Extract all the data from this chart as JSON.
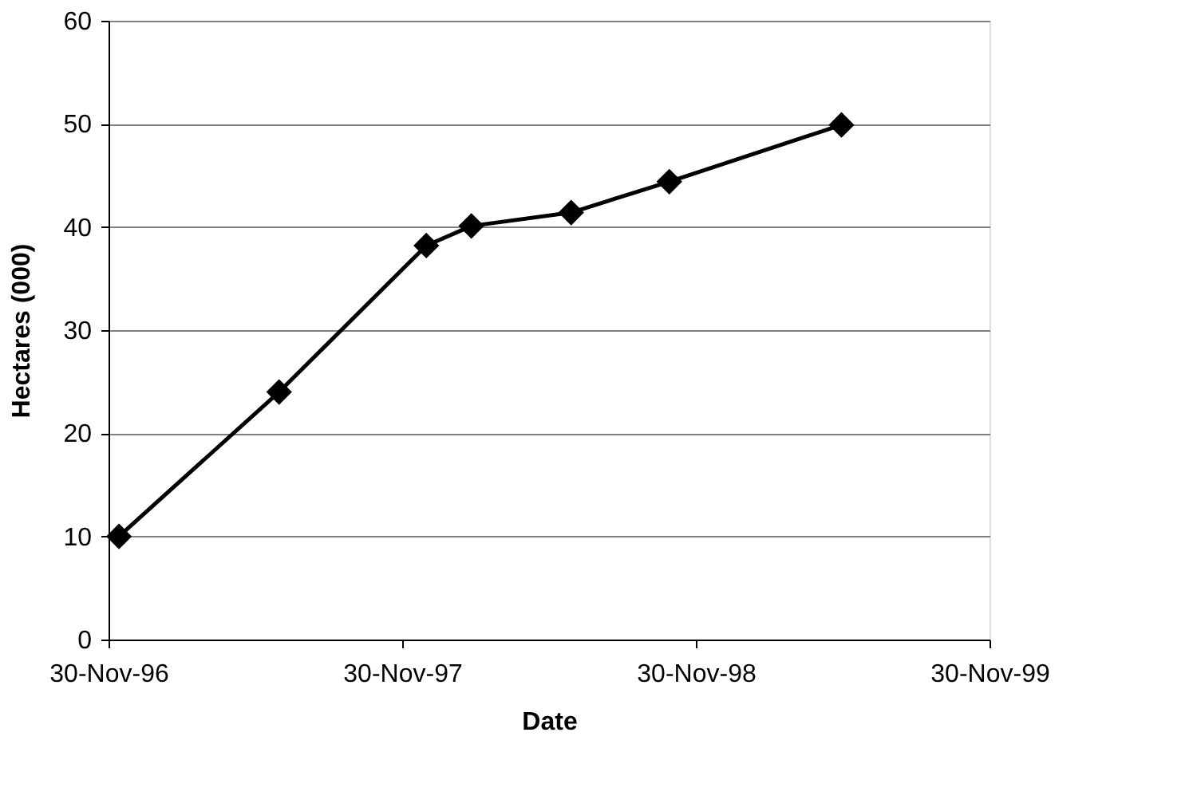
{
  "chart_data": {
    "type": "line",
    "xlabel": "Date",
    "ylabel": "Hectares (000)",
    "x": [
      "1996-12-13",
      "1997-06-30",
      "1997-12-30",
      "1998-02-24",
      "1998-06-28",
      "1998-10-28",
      "1999-05-30"
    ],
    "series": [
      {
        "color": "#000000",
        "values": [
          10,
          24,
          38.2,
          40.1,
          41.4,
          44.4,
          49.9
        ]
      }
    ],
    "xlim": [
      "1996-11-30",
      "1999-11-30"
    ],
    "xticks": [
      {
        "value": "1996-11-30",
        "label": "30-Nov-96"
      },
      {
        "value": "1997-11-30",
        "label": "30-Nov-97"
      },
      {
        "value": "1998-11-30",
        "label": "30-Nov-98"
      },
      {
        "value": "1999-11-30",
        "label": "30-Nov-99"
      }
    ],
    "ylim": [
      0,
      60
    ],
    "yticks": [
      0,
      10,
      20,
      30,
      40,
      50,
      60
    ],
    "grid": "y",
    "legend": false,
    "marker": "diamond",
    "line_style": "solid"
  }
}
